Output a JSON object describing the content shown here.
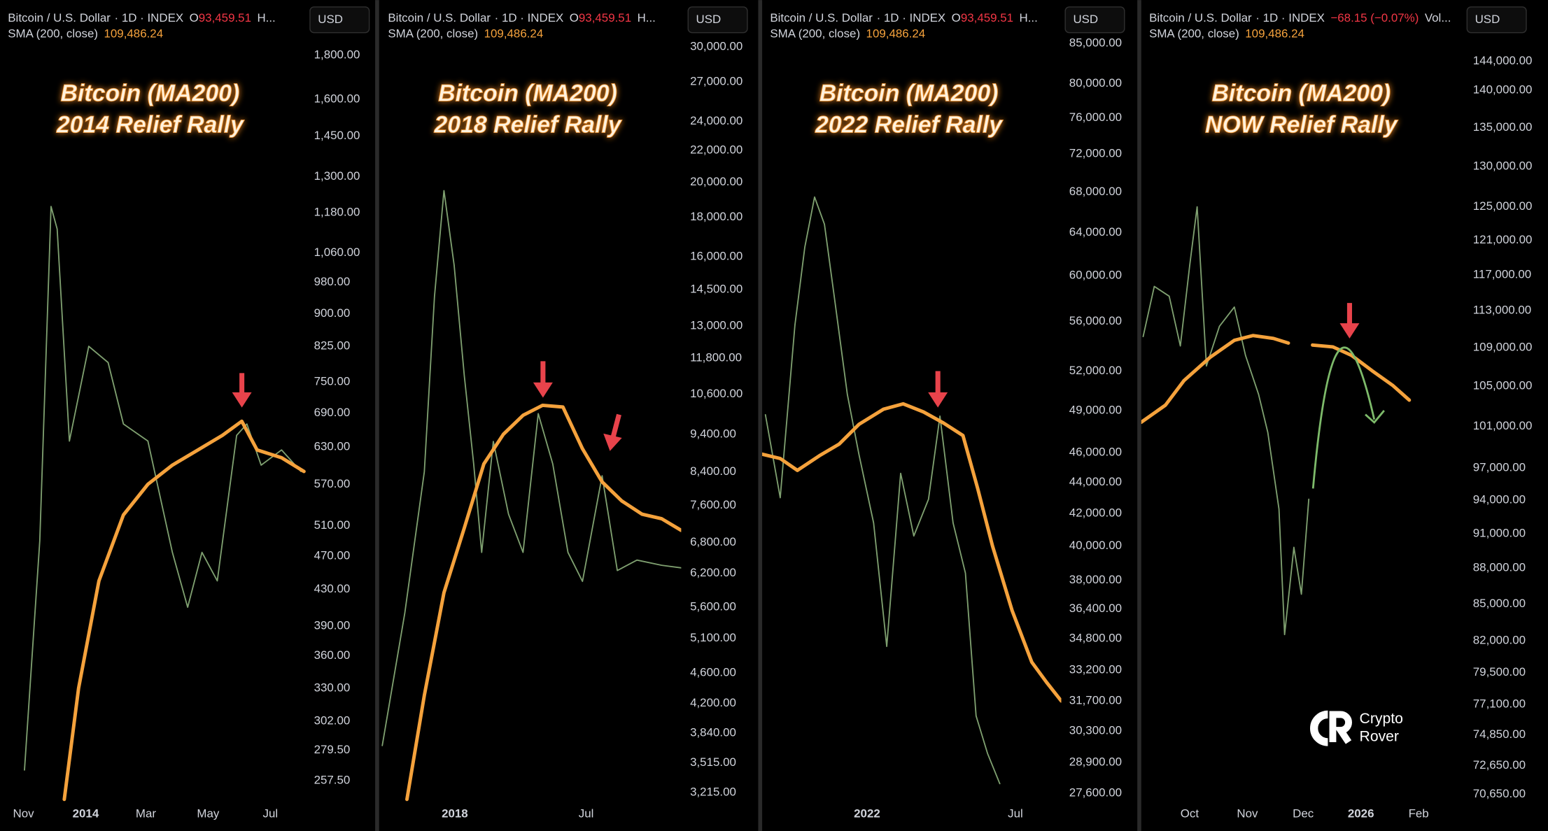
{
  "chart_data": [
    {
      "type": "line",
      "title": "Bitcoin (MA200)",
      "subtitle": "2014 Relief Rally",
      "interval_info": "· 1D · INDEX",
      "quote_label": "O",
      "quote_value": "93,459.51",
      "more": "H...",
      "indicator_value": "109,486.24",
      "currency": "USD",
      "log_scale": true,
      "grid": false,
      "xlim": [
        8,
        308
      ],
      "xticks": [
        {
          "value": 31,
          "label": "Nov"
        },
        {
          "value": 92,
          "label": "2014"
        },
        {
          "value": 151,
          "label": "Mar"
        },
        {
          "value": 212,
          "label": "May"
        },
        {
          "value": 273,
          "label": "Jul"
        }
      ],
      "ylim": [
        245,
        2087
      ],
      "yticks": [
        {
          "value": 1800,
          "label": "1,800.00"
        },
        {
          "value": 1600,
          "label": "1,600.00"
        },
        {
          "value": 1450,
          "label": "1,450.00"
        },
        {
          "value": 1300,
          "label": "1,300.00"
        },
        {
          "value": 1180,
          "label": "1,180.00"
        },
        {
          "value": 1060,
          "label": "1,060.00"
        },
        {
          "value": 980,
          "label": "980.00"
        },
        {
          "value": 900,
          "label": "900.00"
        },
        {
          "value": 825,
          "label": "825.00"
        },
        {
          "value": 750,
          "label": "750.00"
        },
        {
          "value": 690,
          "label": "690.00"
        },
        {
          "value": 630,
          "label": "630.00"
        },
        {
          "value": 570,
          "label": "570.00"
        },
        {
          "value": 510,
          "label": "510.00"
        },
        {
          "value": 470,
          "label": "470.00"
        },
        {
          "value": 430,
          "label": "430.00"
        },
        {
          "value": 390,
          "label": "390.00"
        },
        {
          "value": 360,
          "label": "360.00"
        },
        {
          "value": 330,
          "label": "330.00"
        },
        {
          "value": 302,
          "label": "302.00"
        },
        {
          "value": 279.5,
          "label": "279.50"
        },
        {
          "value": 257.5,
          "label": "257.50"
        }
      ],
      "series": [
        {
          "name": "Bitcoin / U.S. Dollar",
          "color": "#7fa070",
          "x": [
            32,
            47,
            58,
            64,
            76,
            95,
            114,
            129,
            153,
            177,
            192,
            206,
            221,
            240,
            250,
            264,
            284,
            303
          ],
          "values": [
            265,
            490,
            1200,
            1130,
            640,
            825,
            790,
            670,
            640,
            475,
            410,
            475,
            440,
            650,
            670,
            600,
            625,
            590
          ]
        },
        {
          "name": "SMA (200, close)",
          "color": "#f5a23c",
          "x": [
            71,
            85,
            105,
            129,
            153,
            177,
            202,
            226,
            245,
            260,
            284,
            306
          ],
          "values": [
            245,
            330,
            440,
            525,
            570,
            600,
            625,
            650,
            675,
            625,
            612,
            590
          ]
        }
      ]
    },
    {
      "type": "line",
      "title": "Bitcoin (MA200)",
      "subtitle": "2018 Relief Rally",
      "interval_info": "· 1D · INDEX",
      "quote_label": "O",
      "quote_value": "93,459.51",
      "more": "H...",
      "indicator_value": "109,486.24",
      "currency": "USD",
      "log_scale": true,
      "grid": false,
      "xlim": [
        19,
        434
      ],
      "xticks": [
        {
          "value": 122,
          "label": "2018"
        },
        {
          "value": 303,
          "label": "Jul"
        }
      ],
      "ylim": [
        3150,
        34500
      ],
      "yticks": [
        {
          "value": 30000,
          "label": "30,000.00"
        },
        {
          "value": 27000,
          "label": "27,000.00"
        },
        {
          "value": 24000,
          "label": "24,000.00"
        },
        {
          "value": 22000,
          "label": "22,000.00"
        },
        {
          "value": 20000,
          "label": "20,000.00"
        },
        {
          "value": 18000,
          "label": "18,000.00"
        },
        {
          "value": 16000,
          "label": "16,000.00"
        },
        {
          "value": 14500,
          "label": "14,500.00"
        },
        {
          "value": 13000,
          "label": "13,000.00"
        },
        {
          "value": 11800,
          "label": "11,800.00"
        },
        {
          "value": 10600,
          "label": "10,600.00"
        },
        {
          "value": 9400,
          "label": "9,400.00"
        },
        {
          "value": 8400,
          "label": "8,400.00"
        },
        {
          "value": 7600,
          "label": "7,600.00"
        },
        {
          "value": 6800,
          "label": "6,800.00"
        },
        {
          "value": 6200,
          "label": "6,200.00"
        },
        {
          "value": 5600,
          "label": "5,600.00"
        },
        {
          "value": 5100,
          "label": "5,100.00"
        },
        {
          "value": 4600,
          "label": "4,600.00"
        },
        {
          "value": 4200,
          "label": "4,200.00"
        },
        {
          "value": 3840,
          "label": "3,840.00"
        },
        {
          "value": 3515,
          "label": "3,515.00"
        },
        {
          "value": 3215,
          "label": "3,215.00"
        }
      ],
      "series": [
        {
          "name": "Bitcoin / U.S. Dollar",
          "color": "#7fa070",
          "x": [
            22,
            53,
            80,
            94,
            107,
            121,
            135,
            148,
            159,
            175,
            196,
            216,
            237,
            257,
            278,
            298,
            325,
            346,
            373,
            407,
            434
          ],
          "values": [
            3700,
            5500,
            8400,
            14200,
            19500,
            15600,
            11200,
            8600,
            6600,
            9200,
            7400,
            6600,
            10000,
            8600,
            6600,
            6050,
            8300,
            6250,
            6450,
            6350,
            6300
          ]
        },
        {
          "name": "SMA (200, close)",
          "color": "#f5a23c",
          "x": [
            56,
            80,
            107,
            135,
            162,
            189,
            216,
            243,
            271,
            298,
            325,
            352,
            380,
            407,
            434
          ],
          "values": [
            3150,
            4300,
            5850,
            7100,
            8600,
            9400,
            9950,
            10250,
            10200,
            9000,
            8150,
            7700,
            7400,
            7300,
            7050
          ]
        }
      ]
    },
    {
      "type": "line",
      "title": "Bitcoin (MA200)",
      "subtitle": "2022 Relief Rally",
      "interval_info": "· 1D · INDEX",
      "quote_label": "O",
      "quote_value": "93,459.51",
      "more": "H...",
      "indicator_value": "109,486.24",
      "currency": "USD",
      "log_scale": true,
      "grid": false,
      "xlim": [
        25,
        390
      ],
      "xticks": [
        {
          "value": 153,
          "label": "2022"
        },
        {
          "value": 334,
          "label": "Jul"
        }
      ],
      "ylim": [
        27350,
        90700
      ],
      "yticks": [
        {
          "value": 85000,
          "label": "85,000.00"
        },
        {
          "value": 80000,
          "label": "80,000.00"
        },
        {
          "value": 76000,
          "label": "76,000.00"
        },
        {
          "value": 72000,
          "label": "72,000.00"
        },
        {
          "value": 68000,
          "label": "68,000.00"
        },
        {
          "value": 64000,
          "label": "64,000.00"
        },
        {
          "value": 60000,
          "label": "60,000.00"
        },
        {
          "value": 56000,
          "label": "56,000.00"
        },
        {
          "value": 52000,
          "label": "52,000.00"
        },
        {
          "value": 49000,
          "label": "49,000.00"
        },
        {
          "value": 46000,
          "label": "46,000.00"
        },
        {
          "value": 44000,
          "label": "44,000.00"
        },
        {
          "value": 42000,
          "label": "42,000.00"
        },
        {
          "value": 40000,
          "label": "40,000.00"
        },
        {
          "value": 38000,
          "label": "38,000.00"
        },
        {
          "value": 36400,
          "label": "36,400.00"
        },
        {
          "value": 34800,
          "label": "34,800.00"
        },
        {
          "value": 33200,
          "label": "33,200.00"
        },
        {
          "value": 31700,
          "label": "31,700.00"
        },
        {
          "value": 30300,
          "label": "30,300.00"
        },
        {
          "value": 28900,
          "label": "28,900.00"
        },
        {
          "value": 27600,
          "label": "27,600.00"
        }
      ],
      "series": [
        {
          "name": "Bitcoin / U.S. Dollar",
          "color": "#7fa070",
          "x": [
            29,
            47,
            65,
            77,
            89,
            101,
            113,
            129,
            143,
            161,
            177,
            194,
            210,
            228,
            242,
            258,
            273,
            286,
            300,
            315
          ],
          "values": [
            48700,
            43000,
            55700,
            62600,
            67500,
            64800,
            58100,
            50200,
            45900,
            41400,
            34400,
            44600,
            40600,
            42900,
            48600,
            41400,
            38400,
            31000,
            29300,
            28000
          ]
        },
        {
          "name": "SMA (200, close)",
          "color": "#f5a23c",
          "x": [
            25,
            47,
            68,
            95,
            119,
            143,
            173,
            197,
            222,
            246,
            270,
            288,
            306,
            330,
            354,
            372,
            390
          ],
          "values": [
            45900,
            45600,
            44800,
            45800,
            46600,
            48000,
            49100,
            49500,
            48900,
            48100,
            47200,
            43600,
            40000,
            36300,
            33600,
            32600,
            31700
          ]
        }
      ]
    },
    {
      "type": "line",
      "title": "Bitcoin (MA200)",
      "subtitle": "NOW Relief Rally",
      "interval_info": "· 1D · INDEX",
      "quote_value": "−68.15 (−0.07%)",
      "more": "Vol...",
      "indicator_value": "109,486.24",
      "currency": "USD",
      "log_scale": true,
      "grid": false,
      "xlim": [
        4,
        179
      ],
      "xticks": [
        {
          "value": 30,
          "label": "Oct"
        },
        {
          "value": 61,
          "label": "Nov"
        },
        {
          "value": 91,
          "label": "Dec"
        },
        {
          "value": 122,
          "label": "2026"
        },
        {
          "value": 153,
          "label": "Feb"
        }
      ],
      "ylim": [
        70300,
        152800
      ],
      "yticks": [
        {
          "value": 144000,
          "label": "144,000.00"
        },
        {
          "value": 140000,
          "label": "140,000.00"
        },
        {
          "value": 135000,
          "label": "135,000.00"
        },
        {
          "value": 130000,
          "label": "130,000.00"
        },
        {
          "value": 125000,
          "label": "125,000.00"
        },
        {
          "value": 121000,
          "label": "121,000.00"
        },
        {
          "value": 117000,
          "label": "117,000.00"
        },
        {
          "value": 113000,
          "label": "113,000.00"
        },
        {
          "value": 109000,
          "label": "109,000.00"
        },
        {
          "value": 105000,
          "label": "105,000.00"
        },
        {
          "value": 101000,
          "label": "101,000.00"
        },
        {
          "value": 97000,
          "label": "97,000.00"
        },
        {
          "value": 94000,
          "label": "94,000.00"
        },
        {
          "value": 91000,
          "label": "91,000.00"
        },
        {
          "value": 88000,
          "label": "88,000.00"
        },
        {
          "value": 85000,
          "label": "85,000.00"
        },
        {
          "value": 82000,
          "label": "82,000.00"
        },
        {
          "value": 79500,
          "label": "79,500.00"
        },
        {
          "value": 77100,
          "label": "77,100.00"
        },
        {
          "value": 74850,
          "label": "74,850.00"
        },
        {
          "value": 72650,
          "label": "72,650.00"
        },
        {
          "value": 70650,
          "label": "70,650.00"
        }
      ],
      "series": [
        {
          "name": "Bitcoin / U.S. Dollar",
          "color": "#7fa070",
          "x": [
            5,
            11,
            19,
            25,
            30,
            34,
            39,
            46,
            54,
            60,
            67,
            72,
            78,
            81,
            86,
            90,
            94
          ],
          "values": [
            110200,
            115700,
            114600,
            109200,
            118000,
            125000,
            107100,
            111300,
            113400,
            108200,
            104200,
            100400,
            93200,
            82500,
            89800,
            85800,
            94100
          ]
        },
        {
          "name": "SMA (200, close)",
          "color": "#f5a23c",
          "x": [
            4,
            17,
            27,
            41,
            54,
            64,
            75,
            83,
            90,
            96,
            107,
            117,
            128,
            139,
            148
          ],
          "values": [
            101400,
            103100,
            105600,
            108000,
            109800,
            110300,
            110000,
            109500,
            null,
            109300,
            109100,
            108200,
            106600,
            105100,
            103600
          ]
        }
      ]
    }
  ],
  "watermark": {
    "line1": "Crypto",
    "line2": "Rover"
  }
}
